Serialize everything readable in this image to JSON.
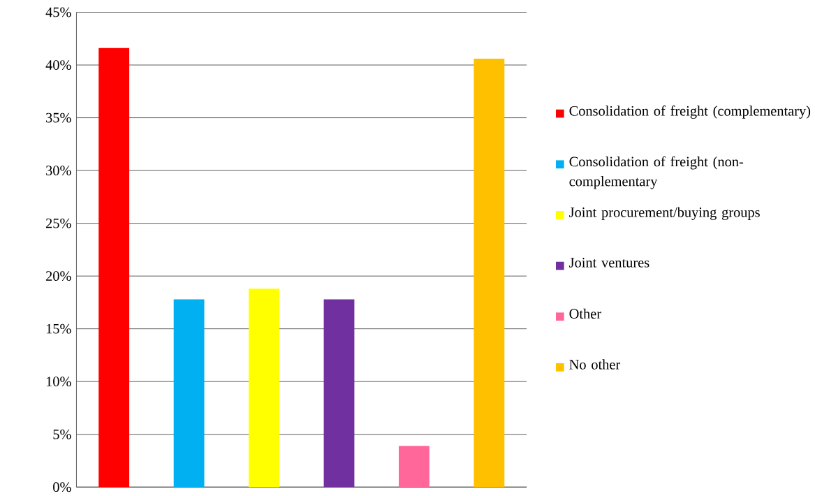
{
  "chart_data": {
    "type": "bar",
    "categories": [
      null,
      null,
      null,
      null,
      null,
      null
    ],
    "series": [
      {
        "name": "Consolidation of freight (complementary)",
        "color": "#ff0000",
        "values": [
          41.6,
          null,
          null,
          null,
          null,
          null
        ]
      },
      {
        "name": "Consolidation of freight (non-complementary",
        "color": "#00b0f0",
        "values": [
          null,
          17.8,
          null,
          null,
          null,
          null
        ]
      },
      {
        "name": "Joint procurement/buying groups",
        "color": "#ffff00",
        "values": [
          null,
          null,
          18.8,
          null,
          null,
          null
        ]
      },
      {
        "name": "Joint ventures",
        "color": "#7030a0",
        "values": [
          null,
          null,
          null,
          17.8,
          null,
          null
        ]
      },
      {
        "name": "Other",
        "color": "#ff6699",
        "values": [
          null,
          null,
          null,
          null,
          3.9,
          null
        ]
      },
      {
        "name": "No other",
        "color": "#ffc000",
        "values": [
          null,
          null,
          null,
          null,
          null,
          40.6
        ]
      }
    ],
    "ylim": [
      0,
      45
    ],
    "yticks": [
      {
        "value": 0,
        "label": "0%"
      },
      {
        "value": 5,
        "label": "5%"
      },
      {
        "value": 10,
        "label": "10%"
      },
      {
        "value": 15,
        "label": "15%"
      },
      {
        "value": 20,
        "label": "20%"
      },
      {
        "value": 25,
        "label": "25%"
      },
      {
        "value": 30,
        "label": "30%"
      },
      {
        "value": 35,
        "label": "35%"
      },
      {
        "value": 40,
        "label": "40%"
      },
      {
        "value": 45,
        "label": "45%"
      }
    ],
    "grid": "y",
    "legend": "right"
  }
}
